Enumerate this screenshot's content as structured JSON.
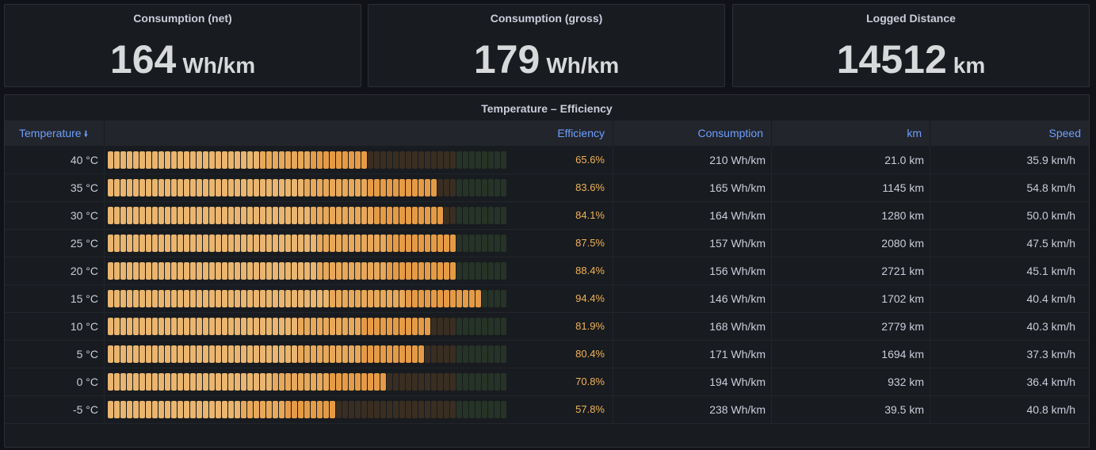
{
  "stats": [
    {
      "title": "Consumption (net)",
      "value": "164",
      "unit": "Wh/km"
    },
    {
      "title": "Consumption (gross)",
      "value": "179",
      "unit": "Wh/km"
    },
    {
      "title": "Logged Distance",
      "value": "14512",
      "unit": "km"
    }
  ],
  "table": {
    "title": "Temperature – Efficiency",
    "columns": {
      "temperature": "Temperature",
      "efficiency": "Efficiency",
      "consumption": "Consumption",
      "km": "km",
      "speed": "Speed"
    },
    "sort_icon": "arrow-down-icon",
    "rows": [
      {
        "temperature": "40 °C",
        "efficiency": 65.6,
        "efficiency_label": "65.6%",
        "consumption": "210 Wh/km",
        "km": "21.0 km",
        "speed": "35.9 km/h"
      },
      {
        "temperature": "35 °C",
        "efficiency": 83.6,
        "efficiency_label": "83.6%",
        "consumption": "165 Wh/km",
        "km": "1145 km",
        "speed": "54.8 km/h"
      },
      {
        "temperature": "30 °C",
        "efficiency": 84.1,
        "efficiency_label": "84.1%",
        "consumption": "164 Wh/km",
        "km": "1280 km",
        "speed": "50.0 km/h"
      },
      {
        "temperature": "25 °C",
        "efficiency": 87.5,
        "efficiency_label": "87.5%",
        "consumption": "157 Wh/km",
        "km": "2080 km",
        "speed": "47.5 km/h"
      },
      {
        "temperature": "20 °C",
        "efficiency": 88.4,
        "efficiency_label": "88.4%",
        "consumption": "156 Wh/km",
        "km": "2721 km",
        "speed": "45.1 km/h"
      },
      {
        "temperature": "15 °C",
        "efficiency": 94.4,
        "efficiency_label": "94.4%",
        "consumption": "146 Wh/km",
        "km": "1702 km",
        "speed": "40.4 km/h"
      },
      {
        "temperature": "10 °C",
        "efficiency": 81.9,
        "efficiency_label": "81.9%",
        "consumption": "168 Wh/km",
        "km": "2779 km",
        "speed": "40.3 km/h"
      },
      {
        "temperature": "5 °C",
        "efficiency": 80.4,
        "efficiency_label": "80.4%",
        "consumption": "171 Wh/km",
        "km": "1694 km",
        "speed": "37.3 km/h"
      },
      {
        "temperature": "0 °C",
        "efficiency": 70.8,
        "efficiency_label": "70.8%",
        "consumption": "194 Wh/km",
        "km": "932 km",
        "speed": "36.4 km/h"
      },
      {
        "temperature": "-5 °C",
        "efficiency": 57.8,
        "efficiency_label": "57.8%",
        "consumption": "238 Wh/km",
        "km": "39.5 km",
        "speed": "40.8 km/h"
      }
    ]
  },
  "colors": {
    "gauge_light": "#e9b56f",
    "gauge_dark": "#e59b45",
    "gauge_empty": "#3a2e22",
    "gauge_green_empty": "#263327",
    "header_text": "#6e9fff",
    "percent_text": "#f0b35a"
  }
}
